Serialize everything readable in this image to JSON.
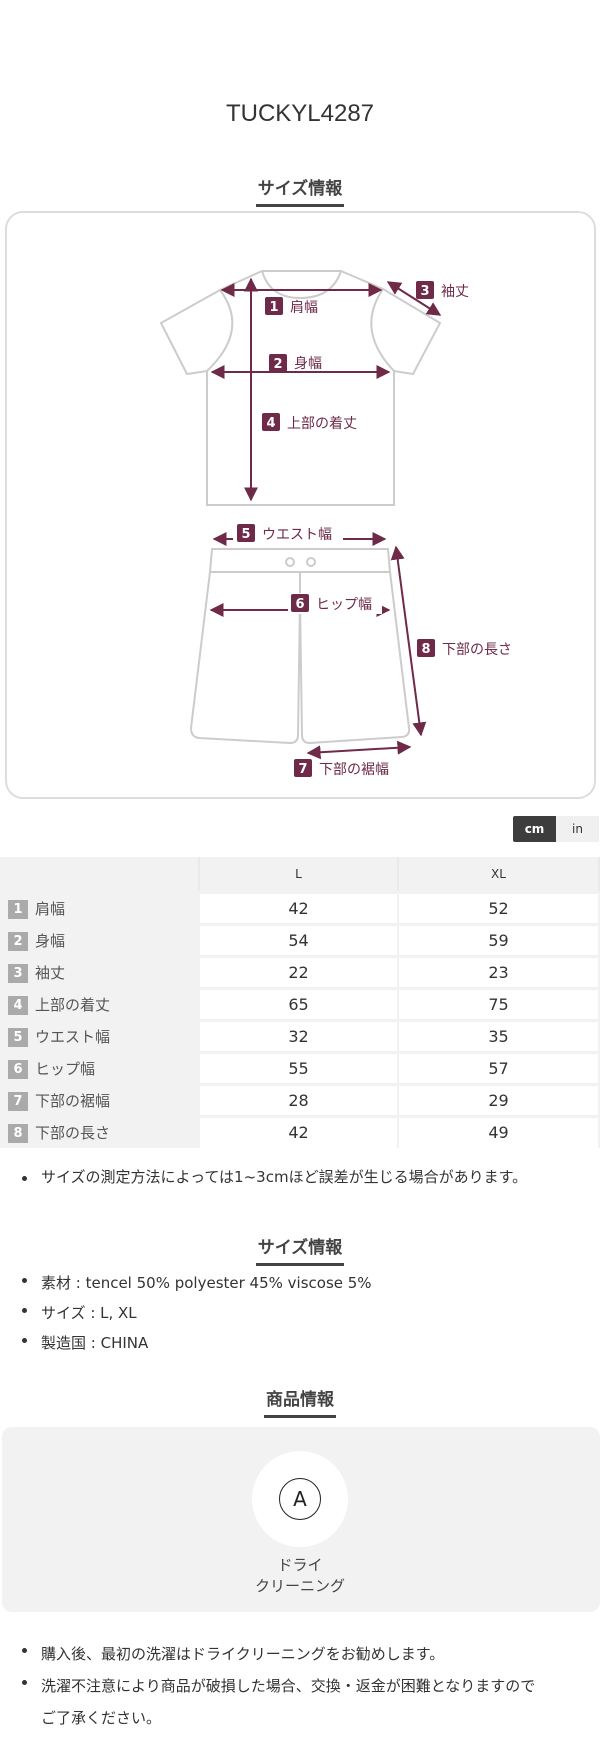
{
  "product_code": "TUCKYL4287",
  "size_section": {
    "heading": "サイズ情報",
    "diagram_labels": [
      {
        "num": "1",
        "text": "肩幅"
      },
      {
        "num": "2",
        "text": "身幅"
      },
      {
        "num": "3",
        "text": "袖丈"
      },
      {
        "num": "4",
        "text": "上部の着丈"
      },
      {
        "num": "5",
        "text": "ウエスト幅"
      },
      {
        "num": "6",
        "text": "ヒップ幅"
      },
      {
        "num": "7",
        "text": "下部の裾幅"
      },
      {
        "num": "8",
        "text": "下部の長さ"
      }
    ],
    "accent_color": "#6e2a48",
    "units": {
      "cm": "cm",
      "in": "in",
      "selected": "cm"
    },
    "table": {
      "columns": [
        "",
        "L",
        "XL"
      ],
      "rows": [
        {
          "num": "1",
          "label": "肩幅",
          "values": [
            "42",
            "52"
          ]
        },
        {
          "num": "2",
          "label": "身幅",
          "values": [
            "54",
            "59"
          ]
        },
        {
          "num": "3",
          "label": "袖丈",
          "values": [
            "22",
            "23"
          ]
        },
        {
          "num": "4",
          "label": "上部の着丈",
          "values": [
            "65",
            "75"
          ]
        },
        {
          "num": "5",
          "label": "ウエスト幅",
          "values": [
            "32",
            "35"
          ]
        },
        {
          "num": "6",
          "label": "ヒップ幅",
          "values": [
            "55",
            "57"
          ]
        },
        {
          "num": "7",
          "label": "下部の裾幅",
          "values": [
            "28",
            "29"
          ]
        },
        {
          "num": "8",
          "label": "下部の長さ",
          "values": [
            "42",
            "49"
          ]
        }
      ]
    },
    "note": "サイズの測定方法によっては1~3cmほど誤差が生じる場合があります。"
  },
  "spec_section": {
    "heading": "サイズ情報",
    "items": [
      "素材 : tencel 50% polyester 45% viscose 5%",
      "サイズ : L, XL",
      "製造国 : CHINA"
    ]
  },
  "product_section": {
    "heading": "商品情報",
    "care_icon": "dry-clean-A-icon",
    "care_icon_letter": "A",
    "care_label_line1": "ドライ",
    "care_label_line2": "クリーニング",
    "notes": [
      "購入後、最初の洗濯はドライクリーニングをお勧めします。",
      "洗濯不注意により商品が破損した場合、交換・返金が困難となりますので",
      "ご了承ください。"
    ]
  }
}
